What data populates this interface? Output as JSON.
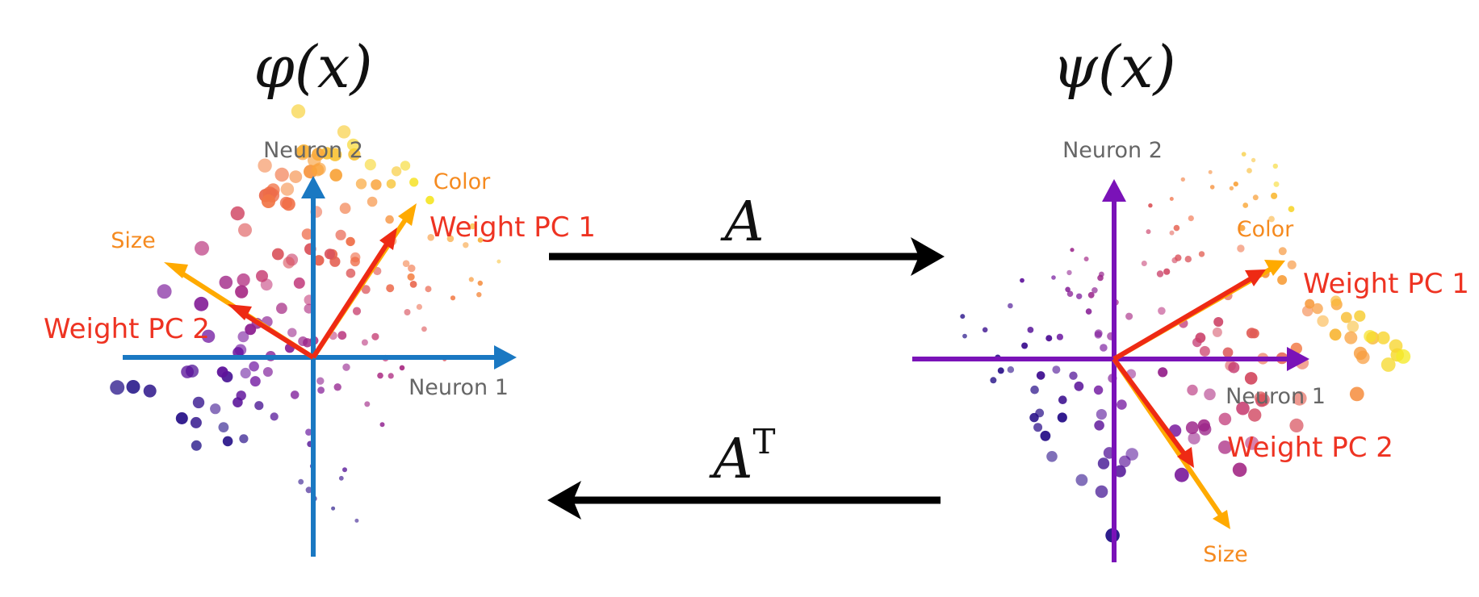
{
  "left_panel": {
    "title": "φ(x)",
    "x_axis_label": "Neuron 1",
    "y_axis_label": "Neuron 2",
    "arrows": {
      "color_label": "Color",
      "size_label": "Size",
      "pc1_label": "Weight PC 1",
      "pc2_label": "Weight PC 2"
    }
  },
  "right_panel": {
    "title": "ψ(x)",
    "x_axis_label": "Neuron 1",
    "y_axis_label": "Neuron 2",
    "arrows": {
      "color_label": "Color",
      "size_label": "Size",
      "pc1_label": "Weight PC 1",
      "pc2_label": "Weight PC 2"
    }
  },
  "maps": {
    "forward_label": "A",
    "backward_label_base": "A",
    "backward_label_sup": "T"
  },
  "colors": {
    "left_axis": "#1a78c2",
    "right_axis": "#7a12b8",
    "feature_arrow": "#ffaa00",
    "pc_arrow": "#ee2a14",
    "feature_text": "#f58a1f",
    "pc_text": "#ee3322",
    "axis_text": "#666666",
    "map_arrow": "#000000"
  }
}
